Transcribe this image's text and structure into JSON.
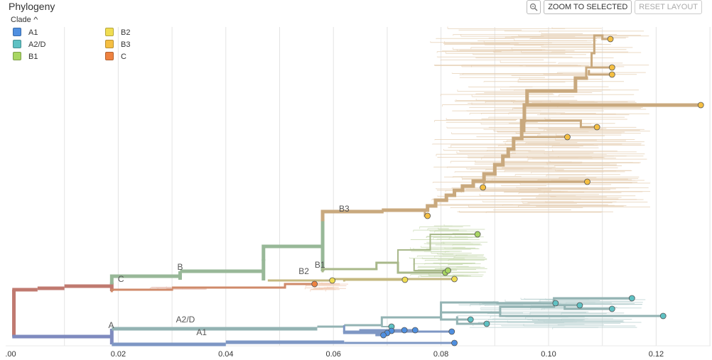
{
  "panel": {
    "title": "Phylogeny",
    "clade_toggle": "Clade"
  },
  "toolbar": {
    "zoom_icon": "magnifier-icon",
    "zoom_to_selected": "ZOOM TO SELECTED",
    "reset_layout": "RESET LAYOUT"
  },
  "legend": [
    {
      "label": "A1",
      "color": "#4f8fe0"
    },
    {
      "label": "A2/D",
      "color": "#5fc1c3"
    },
    {
      "label": "B1",
      "color": "#a8d662"
    },
    {
      "label": "B2",
      "color": "#f0dd52"
    },
    {
      "label": "B3",
      "color": "#f5bf42"
    },
    {
      "label": "C",
      "color": "#ee8240"
    }
  ],
  "chart_data": {
    "type": "tree",
    "x_ticks": [
      {
        "value": 0.0,
        "label": ".00"
      },
      {
        "value": 0.02,
        "label": "0.02"
      },
      {
        "value": 0.04,
        "label": "0.04"
      },
      {
        "value": 0.06,
        "label": "0.06"
      },
      {
        "value": 0.08,
        "label": "0.08"
      },
      {
        "value": 0.1,
        "label": "0.10"
      },
      {
        "value": 0.12,
        "label": "0.12"
      }
    ],
    "xlim": [
      0.0,
      0.128
    ],
    "grid": true,
    "clade_labels": [
      {
        "text": "A",
        "x": 0.0187,
        "y": 462
      },
      {
        "text": "A2/D",
        "x": 0.0325,
        "y": 454
      },
      {
        "text": "A1",
        "x": 0.0355,
        "y": 472
      },
      {
        "text": "B",
        "x": 0.0315,
        "y": 380
      },
      {
        "text": "C",
        "x": 0.0205,
        "y": 397
      },
      {
        "text": "B1",
        "x": 0.0575,
        "y": 377
      },
      {
        "text": "B2",
        "x": 0.0545,
        "y": 386
      },
      {
        "text": "B3",
        "x": 0.062,
        "y": 298
      }
    ],
    "branch_colors": {
      "root": "#c07a70",
      "A": "#7f8bbf",
      "A2D": "#93b3b3",
      "A1": "#7e97c4",
      "B": "#98b898",
      "C": "#cf8a6a",
      "B1": "#a8b88a",
      "B2": "#c4b880",
      "B3": "#c9a97e",
      "B3tips": "#e6cfb4",
      "B1tips": "#c7d9b0",
      "A2Dtips": "#b7d0d0"
    },
    "tips": [
      {
        "clade": "C",
        "x": 0.0565,
        "y": 400
      },
      {
        "clade": "B2",
        "x": 0.0598,
        "y": 395
      },
      {
        "clade": "B2",
        "x": 0.0733,
        "y": 394
      },
      {
        "clade": "B2",
        "x": 0.0825,
        "y": 393
      },
      {
        "clade": "B1",
        "x": 0.0808,
        "y": 384
      },
      {
        "clade": "B1",
        "x": 0.0813,
        "y": 381
      },
      {
        "clade": "B1",
        "x": 0.0868,
        "y": 330
      },
      {
        "clade": "B3",
        "x": 0.0775,
        "y": 304
      },
      {
        "clade": "B3",
        "x": 0.0878,
        "y": 264
      },
      {
        "clade": "B3",
        "x": 0.1072,
        "y": 256
      },
      {
        "clade": "B3",
        "x": 0.1035,
        "y": 193
      },
      {
        "clade": "B3",
        "x": 0.109,
        "y": 179
      },
      {
        "clade": "B3",
        "x": 0.1283,
        "y": 148
      },
      {
        "clade": "B3",
        "x": 0.1118,
        "y": 105
      },
      {
        "clade": "B3",
        "x": 0.1118,
        "y": 95
      },
      {
        "clade": "B3",
        "x": 0.1115,
        "y": 55
      },
      {
        "clade": "A2/D",
        "x": 0.1155,
        "y": 420
      },
      {
        "clade": "A2/D",
        "x": 0.1013,
        "y": 427
      },
      {
        "clade": "A2/D",
        "x": 0.1058,
        "y": 430
      },
      {
        "clade": "A2/D",
        "x": 0.1118,
        "y": 435
      },
      {
        "clade": "A2/D",
        "x": 0.1213,
        "y": 445
      },
      {
        "clade": "A2/D",
        "x": 0.0855,
        "y": 450
      },
      {
        "clade": "A2/D",
        "x": 0.0885,
        "y": 456
      },
      {
        "clade": "A2/D",
        "x": 0.0708,
        "y": 460
      },
      {
        "clade": "A1",
        "x": 0.0708,
        "y": 466
      },
      {
        "clade": "A1",
        "x": 0.0732,
        "y": 465
      },
      {
        "clade": "A1",
        "x": 0.0752,
        "y": 465
      },
      {
        "clade": "A1",
        "x": 0.082,
        "y": 467
      },
      {
        "clade": "A1",
        "x": 0.07,
        "y": 469
      },
      {
        "clade": "A1",
        "x": 0.0693,
        "y": 472
      },
      {
        "clade": "A1",
        "x": 0.0825,
        "y": 483
      }
    ]
  }
}
